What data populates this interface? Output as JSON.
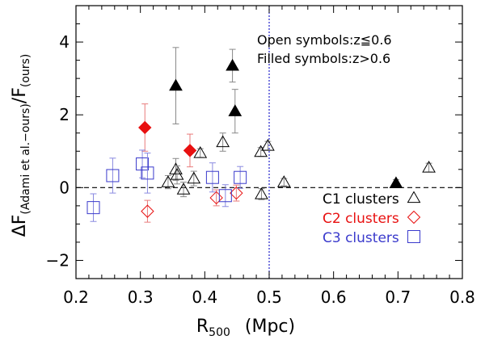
{
  "chart_data": {
    "type": "scatter",
    "xlabel": "R",
    "xlabel_sub": "500",
    "xlabel_unit": "(Mpc)",
    "ylabel": "ΔF",
    "ylabel_sub": "(Adami et al.−ours)",
    "ylabel_div": "/F",
    "ylabel_sub2": "(ours)",
    "xlim": [
      0.2,
      0.8
    ],
    "ylim": [
      -2.5,
      5
    ],
    "xticks": [
      "0.2",
      "0.3",
      "0.4",
      "0.5",
      "0.6",
      "0.7",
      "0.8"
    ],
    "yticks": [
      "−2",
      "0",
      "2",
      "4"
    ],
    "xtick_values": [
      0.2,
      0.3,
      0.4,
      0.5,
      0.6,
      0.7,
      0.8
    ],
    "ytick_values": [
      -2,
      0,
      2,
      4
    ],
    "reference_lines": {
      "horizontal_y": 0,
      "vertical_x": 0.5
    },
    "annotations": [
      "Open symbols:z≦0.6",
      "Filled symbols:z>0.6"
    ],
    "legend": [
      {
        "label": "C1  clusters",
        "symbol": "triangle",
        "color": "#000000"
      },
      {
        "label": "C2  clusters",
        "symbol": "diamond",
        "color": "#e81010"
      },
      {
        "label": "C3  clusters",
        "symbol": "square",
        "color": "#3a3acc"
      }
    ],
    "series": [
      {
        "name": "C1 clusters",
        "symbol": "triangle",
        "color": "#000000",
        "points": [
          {
            "x": 0.343,
            "y": 0.15,
            "err": 0.18,
            "filled": false
          },
          {
            "x": 0.355,
            "y": 0.5,
            "err": 0.3,
            "filled": false
          },
          {
            "x": 0.357,
            "y": 0.35,
            "err": 0.25,
            "filled": false
          },
          {
            "x": 0.367,
            "y": -0.05,
            "err": 0.2,
            "filled": false
          },
          {
            "x": 0.383,
            "y": 0.25,
            "err": 0.2,
            "filled": false
          },
          {
            "x": 0.393,
            "y": 0.95,
            "err": 0.12,
            "filled": false
          },
          {
            "x": 0.428,
            "y": 1.25,
            "err": 0.25,
            "filled": false
          },
          {
            "x": 0.487,
            "y": 0.98,
            "err": 0.12,
            "filled": false
          },
          {
            "x": 0.488,
            "y": -0.18,
            "err": 0.15,
            "filled": false
          },
          {
            "x": 0.498,
            "y": 1.15,
            "err": 0.12,
            "filled": false
          },
          {
            "x": 0.523,
            "y": 0.15,
            "err": 0.1,
            "filled": false
          },
          {
            "x": 0.748,
            "y": 0.55,
            "err": 0.12,
            "filled": false
          },
          {
            "x": 0.355,
            "y": 2.8,
            "err": 1.05,
            "filled": true
          },
          {
            "x": 0.443,
            "y": 3.35,
            "err": 0.45,
            "filled": true
          },
          {
            "x": 0.447,
            "y": 2.1,
            "err": 0.6,
            "filled": true
          },
          {
            "x": 0.697,
            "y": 0.12,
            "err": 0.1,
            "filled": true
          }
        ]
      },
      {
        "name": "C2 clusters",
        "symbol": "diamond",
        "color": "#e81010",
        "points": [
          {
            "x": 0.311,
            "y": -0.65,
            "err": 0.3,
            "filled": false
          },
          {
            "x": 0.418,
            "y": -0.28,
            "err": 0.22,
            "filled": false
          },
          {
            "x": 0.449,
            "y": -0.15,
            "err": 0.22,
            "filled": false
          },
          {
            "x": 0.307,
            "y": 1.65,
            "err": 0.65,
            "filled": true
          },
          {
            "x": 0.377,
            "y": 1.02,
            "err": 0.45,
            "filled": true
          }
        ]
      },
      {
        "name": "C3 clusters",
        "symbol": "square",
        "color": "#3a3acc",
        "points": [
          {
            "x": 0.227,
            "y": -0.55,
            "err": 0.38,
            "filled": false
          },
          {
            "x": 0.257,
            "y": 0.33,
            "err": 0.48,
            "filled": false
          },
          {
            "x": 0.303,
            "y": 0.65,
            "err": 0.38,
            "filled": false
          },
          {
            "x": 0.311,
            "y": 0.4,
            "err": 0.55,
            "filled": false
          },
          {
            "x": 0.412,
            "y": 0.28,
            "err": 0.4,
            "filled": false
          },
          {
            "x": 0.432,
            "y": -0.22,
            "err": 0.3,
            "filled": false
          },
          {
            "x": 0.455,
            "y": 0.28,
            "err": 0.3,
            "filled": false
          }
        ]
      }
    ]
  }
}
